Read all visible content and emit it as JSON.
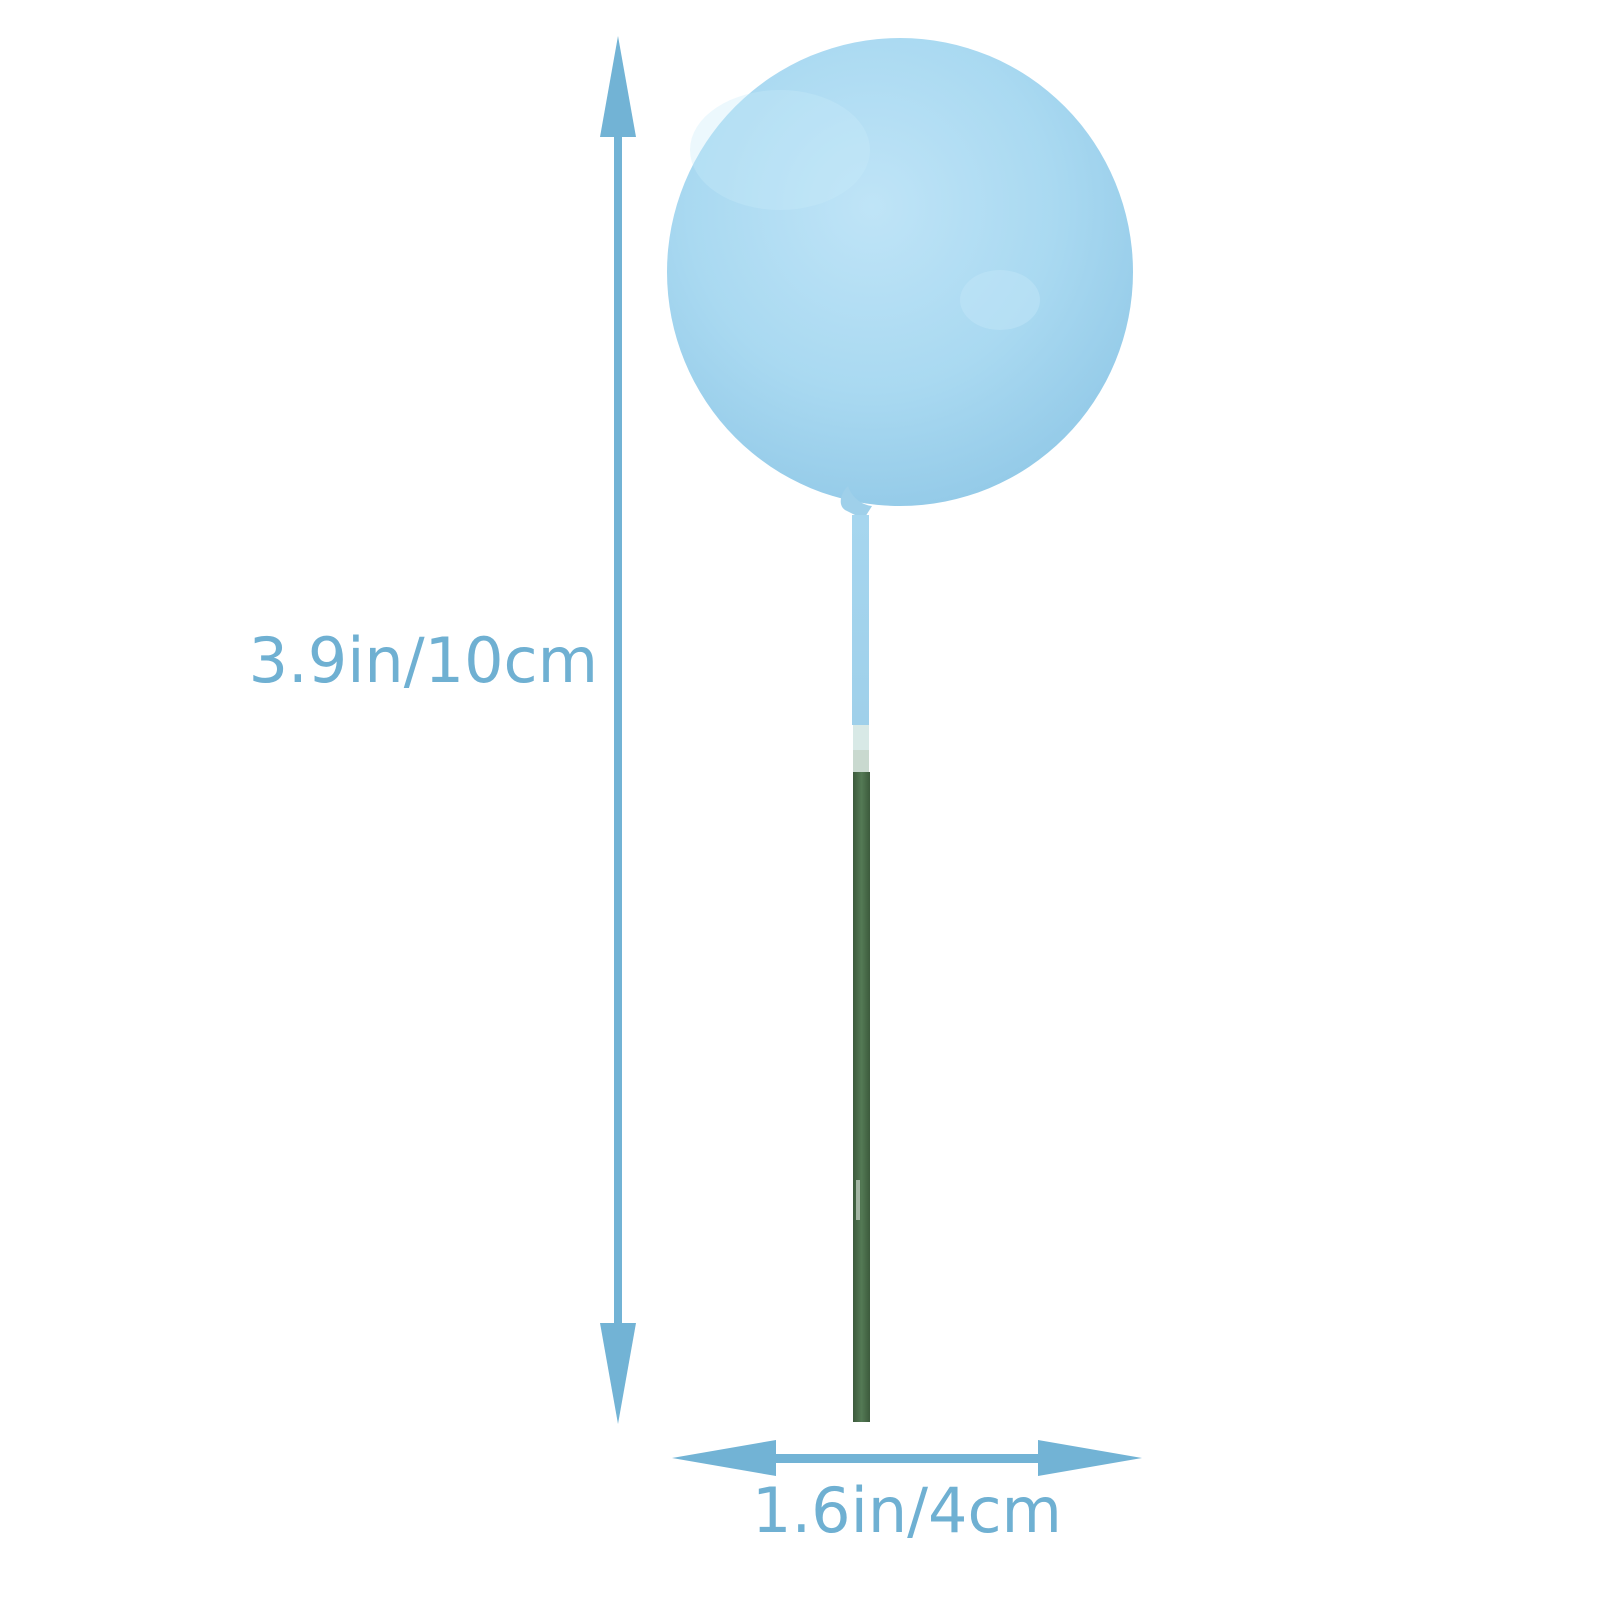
{
  "measurements": {
    "height_label": "3.9in/10cm",
    "width_label": "1.6in/4cm"
  },
  "colors": {
    "arrow": "#72b3d5",
    "label": "#6fb0d2",
    "ball": "#a9d9f1",
    "ball_shade": "#8fc7e6",
    "stick_top": "#a6d6ef",
    "stick_bottom": "#4a6b4a"
  },
  "product": {
    "object": "balloon-cake-topper",
    "icons": [
      "height-arrow-icon",
      "width-arrow-icon"
    ]
  }
}
